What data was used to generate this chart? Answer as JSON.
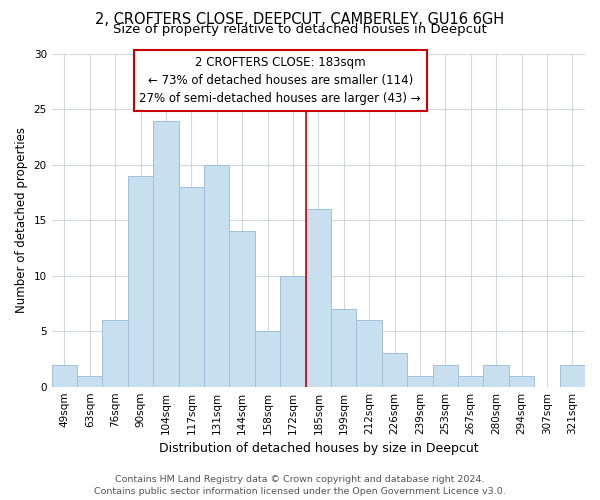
{
  "title": "2, CROFTERS CLOSE, DEEPCUT, CAMBERLEY, GU16 6GH",
  "subtitle": "Size of property relative to detached houses in Deepcut",
  "xlabel": "Distribution of detached houses by size in Deepcut",
  "ylabel": "Number of detached properties",
  "bar_labels": [
    "49sqm",
    "63sqm",
    "76sqm",
    "90sqm",
    "104sqm",
    "117sqm",
    "131sqm",
    "144sqm",
    "158sqm",
    "172sqm",
    "185sqm",
    "199sqm",
    "212sqm",
    "226sqm",
    "239sqm",
    "253sqm",
    "267sqm",
    "280sqm",
    "294sqm",
    "307sqm",
    "321sqm"
  ],
  "bar_heights": [
    2,
    1,
    6,
    19,
    24,
    18,
    20,
    14,
    5,
    10,
    16,
    7,
    6,
    3,
    1,
    2,
    1,
    2,
    1,
    0,
    2
  ],
  "bar_color": "#c8dff0",
  "bar_edge_color": "#a0c0dc",
  "vline_x_index": 10,
  "vline_color": "#cc0000",
  "annotation_line1": "2 CROFTERS CLOSE: 183sqm",
  "annotation_line2": "← 73% of detached houses are smaller (114)",
  "annotation_line3": "27% of semi-detached houses are larger (43) →",
  "annotation_box_color": "#ffffff",
  "annotation_box_edge": "#cc0000",
  "ylim": [
    0,
    30
  ],
  "yticks": [
    0,
    5,
    10,
    15,
    20,
    25,
    30
  ],
  "grid_color": "#d0d8e0",
  "bg_color": "#ffffff",
  "plot_bg_color": "#ffffff",
  "footnote": "Contains HM Land Registry data © Crown copyright and database right 2024.\nContains public sector information licensed under the Open Government Licence v3.0.",
  "title_fontsize": 10.5,
  "subtitle_fontsize": 9.5,
  "xlabel_fontsize": 9,
  "ylabel_fontsize": 8.5,
  "tick_fontsize": 7.5,
  "annotation_fontsize": 8.5,
  "footnote_fontsize": 6.8
}
